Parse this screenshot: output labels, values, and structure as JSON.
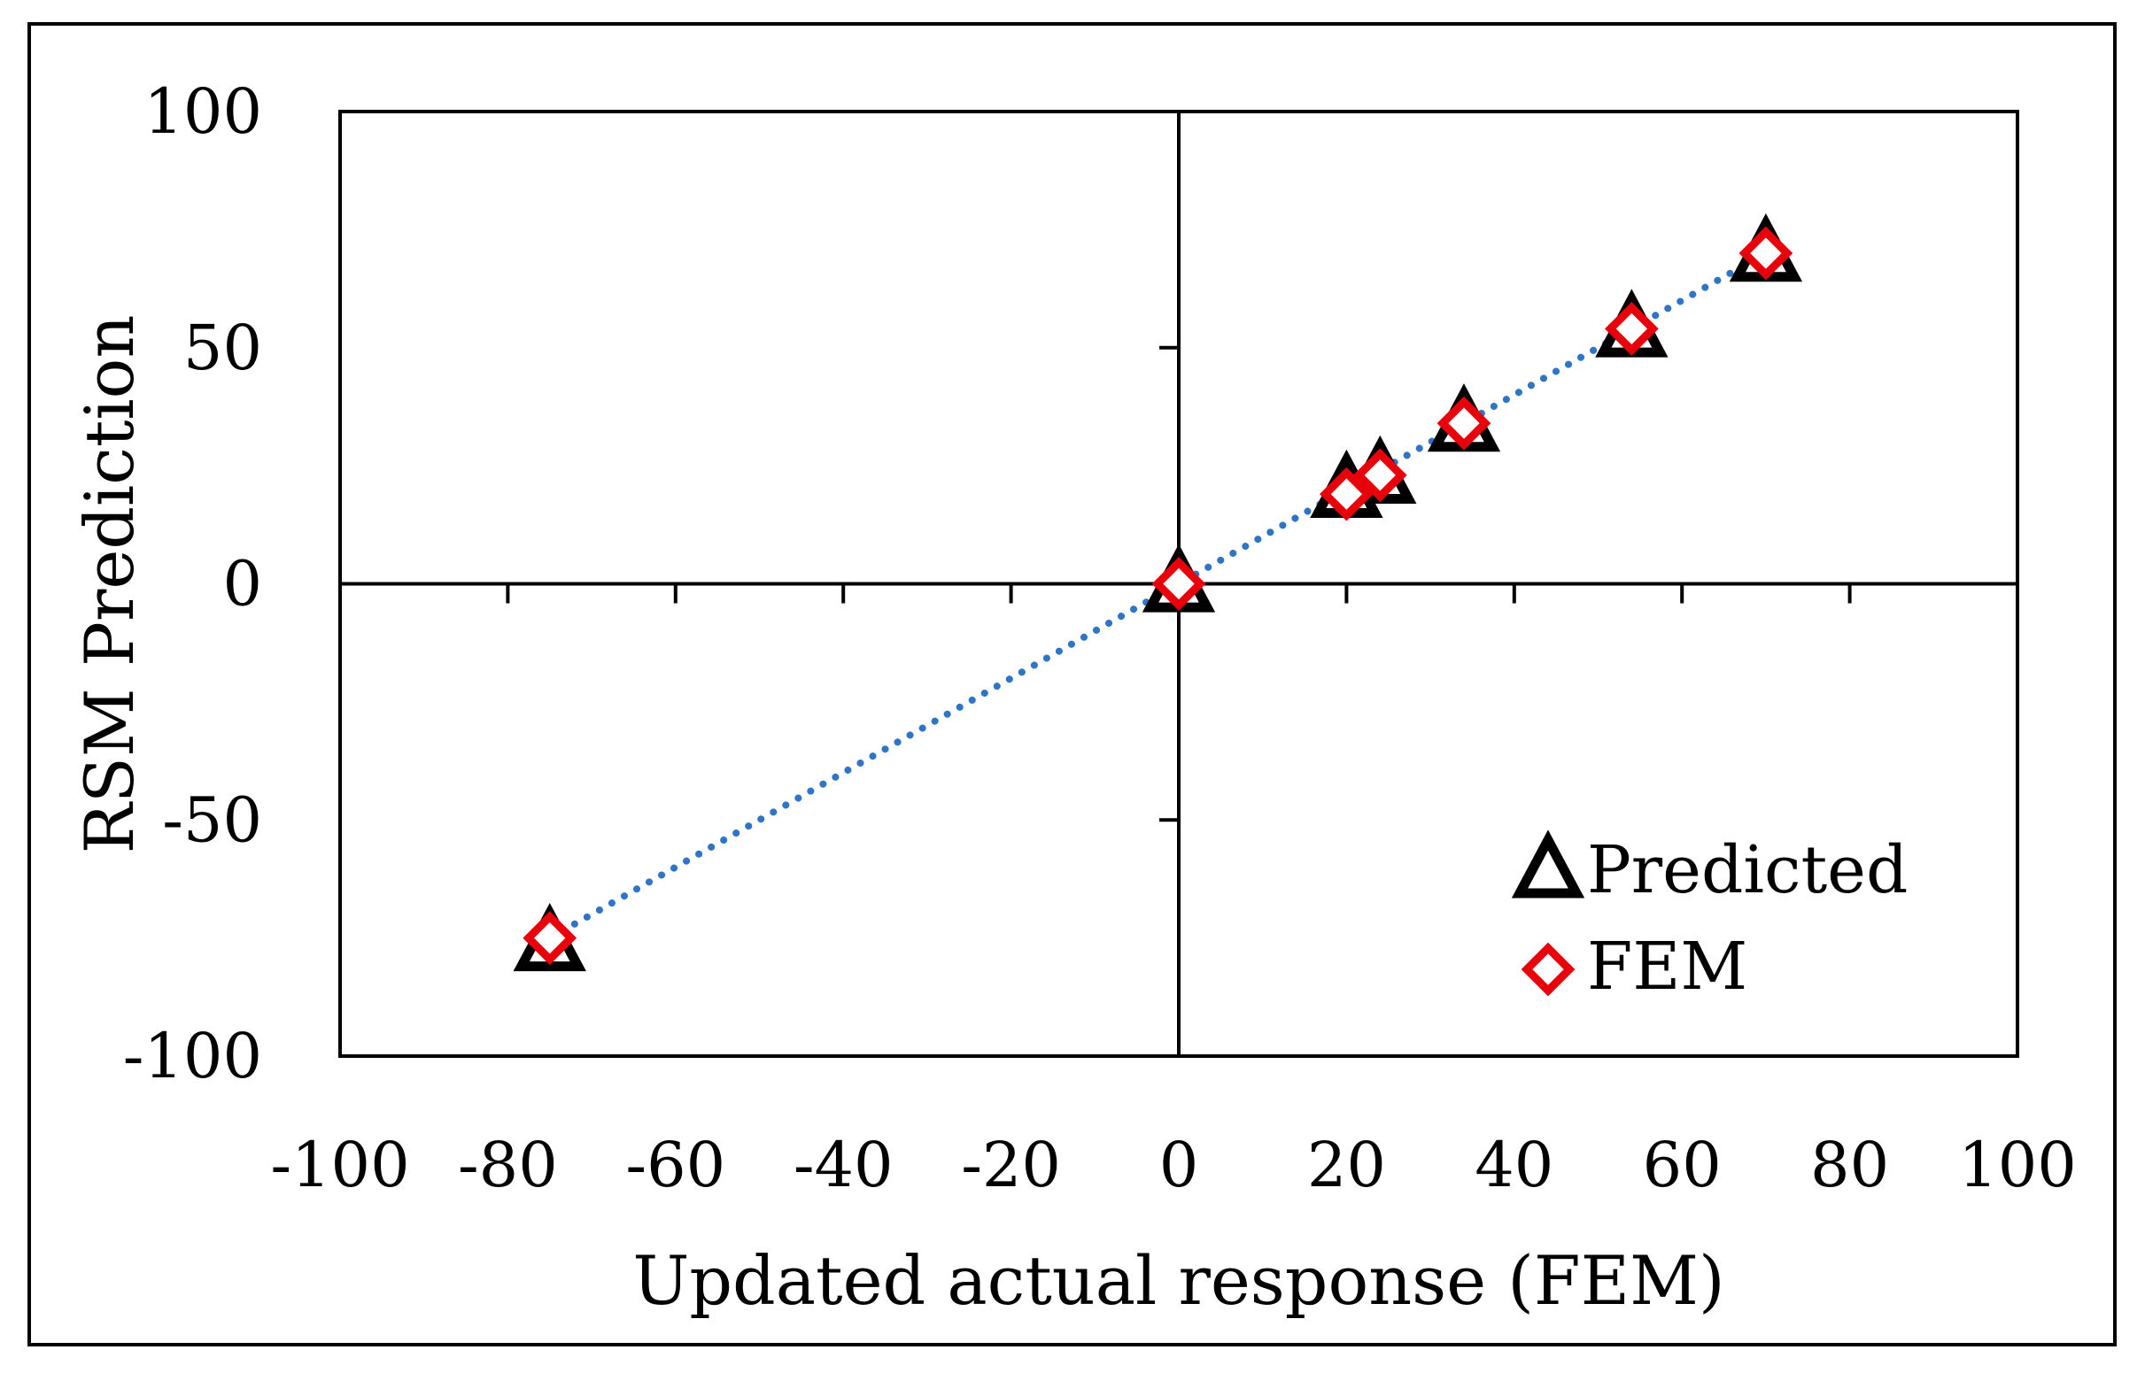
{
  "chart_data": {
    "type": "scatter",
    "title": "",
    "xlabel": "Updated actual response (FEM)",
    "ylabel": "RSM Prediction",
    "xlim": [
      -100,
      100
    ],
    "ylim": [
      -100,
      100
    ],
    "xticks": [
      -100,
      -80,
      -60,
      -40,
      -20,
      0,
      20,
      40,
      60,
      80,
      100
    ],
    "yticks": [
      100,
      50,
      0,
      -50,
      -100
    ],
    "legend_position": "bottom-right",
    "trendline": {
      "style": "dotted",
      "color": "#2E75C8",
      "from": [
        -75,
        -75
      ],
      "to": [
        70,
        70
      ]
    },
    "series": [
      {
        "name": "Predicted",
        "marker": "triangle",
        "color": "#000000",
        "x": [
          -75,
          0,
          20,
          24,
          34,
          54,
          70
        ],
        "y": [
          -78,
          -2,
          18,
          21,
          32,
          52,
          68
        ]
      },
      {
        "name": "FEM",
        "marker": "diamond",
        "color": "#E8000B",
        "x": [
          -75,
          0,
          20,
          24,
          34,
          54,
          70
        ],
        "y": [
          -75,
          0,
          19,
          23,
          34,
          54,
          70
        ]
      }
    ]
  }
}
